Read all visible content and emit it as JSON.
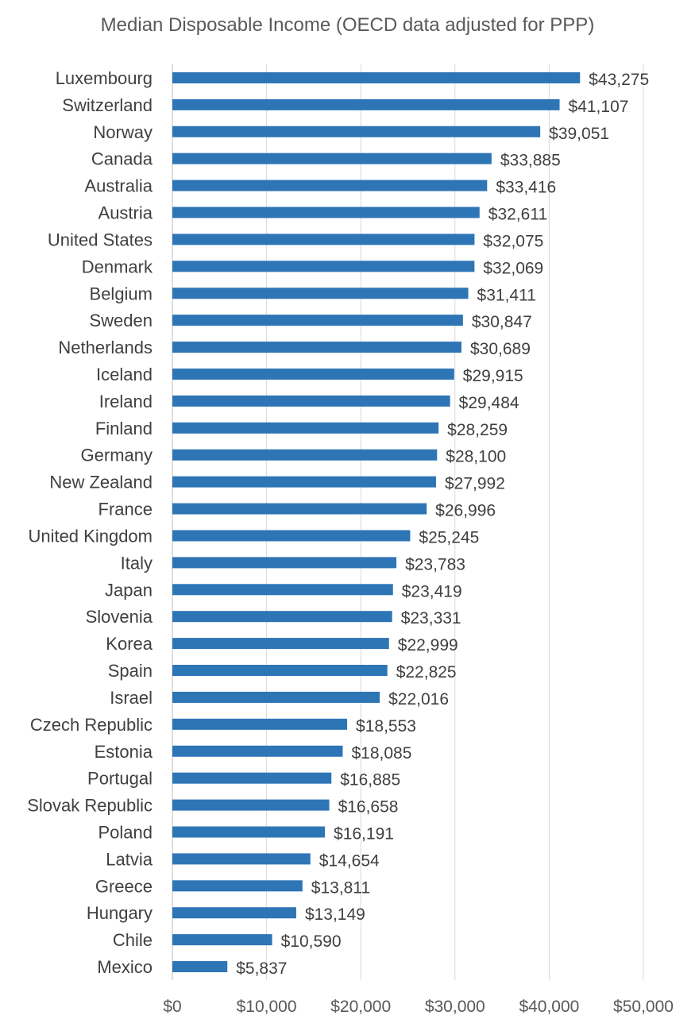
{
  "chart_data": {
    "type": "bar",
    "orientation": "horizontal",
    "title": "Median Disposable Income (OECD data adjusted for PPP)",
    "xlabel": "",
    "ylabel": "",
    "xlim": [
      0,
      50000
    ],
    "x_ticks": [
      0,
      10000,
      20000,
      30000,
      40000,
      50000
    ],
    "x_tick_labels": [
      "$0",
      "$10,000",
      "$20,000",
      "$30,000",
      "$40,000",
      "$50,000"
    ],
    "grid": "vertical",
    "bar_color": "#2E75B6",
    "categories": [
      "Luxembourg",
      "Switzerland",
      "Norway",
      "Canada",
      "Australia",
      "Austria",
      "United States",
      "Denmark",
      "Belgium",
      "Sweden",
      "Netherlands",
      "Iceland",
      "Ireland",
      "Finland",
      "Germany",
      "New Zealand",
      "France",
      "United Kingdom",
      "Italy",
      "Japan",
      "Slovenia",
      "Korea",
      "Spain",
      "Israel",
      "Czech Republic",
      "Estonia",
      "Portugal",
      "Slovak Republic",
      "Poland",
      "Latvia",
      "Greece",
      "Hungary",
      "Chile",
      "Mexico"
    ],
    "values": [
      43275,
      41107,
      39051,
      33885,
      33416,
      32611,
      32075,
      32069,
      31411,
      30847,
      30689,
      29915,
      29484,
      28259,
      28100,
      27992,
      26996,
      25245,
      23783,
      23419,
      23331,
      22999,
      22825,
      22016,
      18553,
      18085,
      16885,
      16658,
      16191,
      14654,
      13811,
      13149,
      10590,
      5837
    ],
    "value_labels": [
      "$43,275",
      "$41,107",
      "$39,051",
      "$33,885",
      "$33,416",
      "$32,611",
      "$32,075",
      "$32,069",
      "$31,411",
      "$30,847",
      "$30,689",
      "$29,915",
      "$29,484",
      "$28,259",
      "$28,100",
      "$27,992",
      "$26,996",
      "$25,245",
      "$23,783",
      "$23,419",
      "$23,331",
      "$22,999",
      "$22,825",
      "$22,016",
      "$18,553",
      "$18,085",
      "$16,885",
      "$16,658",
      "$16,191",
      "$14,654",
      "$13,811",
      "$13,149",
      "$10,590",
      "$5,837"
    ]
  }
}
